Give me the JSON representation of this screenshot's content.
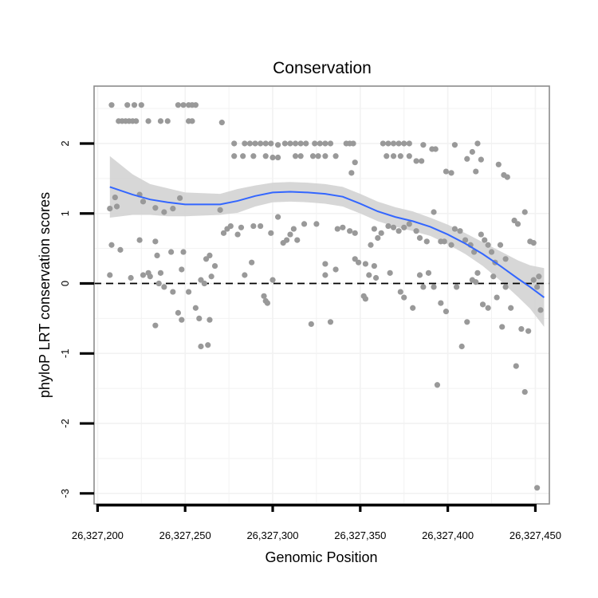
{
  "chart_data": {
    "type": "scatter",
    "title": "Conservation",
    "xlabel": "Genomic Position",
    "ylabel": "phyloP LRT conservation scores",
    "xlim": [
      26327198,
      26327458
    ],
    "ylim": [
      -3.15,
      2.82
    ],
    "x_ticks": [
      26327200,
      26327250,
      26327300,
      26327350,
      26327400,
      26327450
    ],
    "x_tick_labels": [
      "26,327,200",
      "26,327,250",
      "26,327,300",
      "26,327,350",
      "26,327,400",
      "26,327,450"
    ],
    "y_ticks": [
      -3,
      -2,
      -1,
      0,
      1,
      2
    ],
    "y_tick_labels": [
      "-3",
      "-2",
      "-1",
      "0",
      "1",
      "2"
    ],
    "reference_line": {
      "y": 0,
      "style": "dashed"
    },
    "grid": true,
    "colors": {
      "points": "#999999",
      "smooth_line": "#3366ff",
      "ribbon": "#d3d3d3",
      "panel_border": "#8c8c8c",
      "grid": "#f2f2f2",
      "reference_line": "#000000"
    },
    "smooth": {
      "x": [
        26327207,
        26327220,
        26327230,
        26327240,
        26327250,
        26327260,
        26327270,
        26327280,
        26327290,
        26327300,
        26327310,
        26327320,
        26327330,
        26327340,
        26327350,
        26327360,
        26327370,
        26327380,
        26327390,
        26327400,
        26327410,
        26327420,
        26327430,
        26327440,
        26327447,
        26327455
      ],
      "y": [
        1.38,
        1.27,
        1.2,
        1.16,
        1.13,
        1.13,
        1.13,
        1.18,
        1.25,
        1.3,
        1.31,
        1.3,
        1.28,
        1.24,
        1.14,
        1.03,
        0.95,
        0.89,
        0.81,
        0.7,
        0.57,
        0.42,
        0.25,
        0.07,
        -0.05,
        -0.2
      ],
      "lower": [
        0.94,
        0.98,
        0.98,
        0.96,
        0.96,
        0.97,
        0.98,
        1.01,
        1.1,
        1.16,
        1.17,
        1.16,
        1.14,
        1.1,
        1.0,
        0.89,
        0.81,
        0.75,
        0.68,
        0.56,
        0.42,
        0.25,
        0.04,
        -0.19,
        -0.36,
        -0.62
      ],
      "upper": [
        1.82,
        1.56,
        1.42,
        1.36,
        1.3,
        1.29,
        1.28,
        1.35,
        1.4,
        1.44,
        1.45,
        1.44,
        1.42,
        1.38,
        1.28,
        1.17,
        1.09,
        1.03,
        0.94,
        0.84,
        0.72,
        0.59,
        0.46,
        0.33,
        0.26,
        0.22
      ]
    },
    "points": [
      [
        26327208,
        2.55
      ],
      [
        26327217,
        2.55
      ],
      [
        26327221,
        2.55
      ],
      [
        26327225,
        2.55
      ],
      [
        26327246,
        2.55
      ],
      [
        26327249,
        2.55
      ],
      [
        26327252,
        2.55
      ],
      [
        26327254,
        2.55
      ],
      [
        26327256,
        2.55
      ],
      [
        26327212,
        2.32
      ],
      [
        26327214,
        2.32
      ],
      [
        26327216,
        2.32
      ],
      [
        26327218,
        2.32
      ],
      [
        26327220,
        2.32
      ],
      [
        26327222,
        2.32
      ],
      [
        26327229,
        2.32
      ],
      [
        26327236,
        2.32
      ],
      [
        26327240,
        2.32
      ],
      [
        26327252,
        2.32
      ],
      [
        26327254,
        2.32
      ],
      [
        26327271,
        2.3
      ],
      [
        26327278,
        2.0
      ],
      [
        26327284,
        2.0
      ],
      [
        26327287,
        2.0
      ],
      [
        26327290,
        2.0
      ],
      [
        26327293,
        2.0
      ],
      [
        26327296,
        2.0
      ],
      [
        26327299,
        2.0
      ],
      [
        26327303,
        1.98
      ],
      [
        26327307,
        2.0
      ],
      [
        26327310,
        2.0
      ],
      [
        26327313,
        2.0
      ],
      [
        26327316,
        2.0
      ],
      [
        26327319,
        2.0
      ],
      [
        26327324,
        2.0
      ],
      [
        26327327,
        2.0
      ],
      [
        26327330,
        2.0
      ],
      [
        26327333,
        2.0
      ],
      [
        26327342,
        2.0
      ],
      [
        26327344,
        2.0
      ],
      [
        26327346,
        2.0
      ],
      [
        26327363,
        2.0
      ],
      [
        26327366,
        2.0
      ],
      [
        26327369,
        2.0
      ],
      [
        26327372,
        2.0
      ],
      [
        26327375,
        2.0
      ],
      [
        26327378,
        2.0
      ],
      [
        26327386,
        1.98
      ],
      [
        26327404,
        1.98
      ],
      [
        26327417,
        2.0
      ],
      [
        26327429,
        1.7
      ],
      [
        26327432,
        1.55
      ],
      [
        26327434,
        1.52
      ],
      [
        26327278,
        1.82
      ],
      [
        26327283,
        1.82
      ],
      [
        26327289,
        1.82
      ],
      [
        26327296,
        1.82
      ],
      [
        26327300,
        1.8
      ],
      [
        26327303,
        1.8
      ],
      [
        26327313,
        1.82
      ],
      [
        26327316,
        1.82
      ],
      [
        26327323,
        1.82
      ],
      [
        26327326,
        1.82
      ],
      [
        26327330,
        1.82
      ],
      [
        26327336,
        1.82
      ],
      [
        26327347,
        1.73
      ],
      [
        26327345,
        1.58
      ],
      [
        26327365,
        1.82
      ],
      [
        26327369,
        1.82
      ],
      [
        26327373,
        1.82
      ],
      [
        26327378,
        1.82
      ],
      [
        26327382,
        1.75
      ],
      [
        26327385,
        1.75
      ],
      [
        26327391,
        1.92
      ],
      [
        26327393,
        1.92
      ],
      [
        26327399,
        1.6
      ],
      [
        26327402,
        1.58
      ],
      [
        26327411,
        1.78
      ],
      [
        26327414,
        1.88
      ],
      [
        26327416,
        1.6
      ],
      [
        26327419,
        1.77
      ],
      [
        26327207,
        1.07
      ],
      [
        26327210,
        1.23
      ],
      [
        26327211,
        1.1
      ],
      [
        26327224,
        1.27
      ],
      [
        26327226,
        1.17
      ],
      [
        26327233,
        1.08
      ],
      [
        26327238,
        1.02
      ],
      [
        26327243,
        1.07
      ],
      [
        26327247,
        1.22
      ],
      [
        26327270,
        1.05
      ],
      [
        26327208,
        0.55
      ],
      [
        26327213,
        0.48
      ],
      [
        26327224,
        0.62
      ],
      [
        26327229,
        0.15
      ],
      [
        26327233,
        0.6
      ],
      [
        26327234,
        0.4
      ],
      [
        26327236,
        0.15
      ],
      [
        26327242,
        0.45
      ],
      [
        26327248,
        0.2
      ],
      [
        26327249,
        0.45
      ],
      [
        26327259,
        0.05
      ],
      [
        26327262,
        0.35
      ],
      [
        26327264,
        0.4
      ],
      [
        26327265,
        0.1
      ],
      [
        26327267,
        0.25
      ],
      [
        26327272,
        0.72
      ],
      [
        26327274,
        0.78
      ],
      [
        26327276,
        0.82
      ],
      [
        26327280,
        0.7
      ],
      [
        26327282,
        0.8
      ],
      [
        26327288,
        0.3
      ],
      [
        26327289,
        0.82
      ],
      [
        26327293,
        0.82
      ],
      [
        26327299,
        0.72
      ],
      [
        26327303,
        0.95
      ],
      [
        26327306,
        0.58
      ],
      [
        26327308,
        0.62
      ],
      [
        26327310,
        0.7
      ],
      [
        26327312,
        0.78
      ],
      [
        26327314,
        0.62
      ],
      [
        26327318,
        0.85
      ],
      [
        26327325,
        0.85
      ],
      [
        26327330,
        0.28
      ],
      [
        26327337,
        0.78
      ],
      [
        26327340,
        0.8
      ],
      [
        26327344,
        0.75
      ],
      [
        26327347,
        0.72
      ],
      [
        26327353,
        0.28
      ],
      [
        26327356,
        0.55
      ],
      [
        26327358,
        0.78
      ],
      [
        26327360,
        0.65
      ],
      [
        26327362,
        0.72
      ],
      [
        26327366,
        0.82
      ],
      [
        26327369,
        0.8
      ],
      [
        26327372,
        0.75
      ],
      [
        26327375,
        0.8
      ],
      [
        26327378,
        0.85
      ],
      [
        26327382,
        0.75
      ],
      [
        26327384,
        0.65
      ],
      [
        26327388,
        0.6
      ],
      [
        26327392,
        1.02
      ],
      [
        26327396,
        0.6
      ],
      [
        26327398,
        0.6
      ],
      [
        26327402,
        0.55
      ],
      [
        26327404,
        0.78
      ],
      [
        26327407,
        0.75
      ],
      [
        26327410,
        0.62
      ],
      [
        26327413,
        0.55
      ],
      [
        26327415,
        0.45
      ],
      [
        26327417,
        0.15
      ],
      [
        26327419,
        0.7
      ],
      [
        26327421,
        0.62
      ],
      [
        26327423,
        0.55
      ],
      [
        26327425,
        0.45
      ],
      [
        26327427,
        0.3
      ],
      [
        26327430,
        0.55
      ],
      [
        26327433,
        0.35
      ],
      [
        26327438,
        0.9
      ],
      [
        26327440,
        0.85
      ],
      [
        26327444,
        1.02
      ],
      [
        26327447,
        0.6
      ],
      [
        26327449,
        0.58
      ],
      [
        26327452,
        0.1
      ],
      [
        26327207,
        0.12
      ],
      [
        26327219,
        0.08
      ],
      [
        26327226,
        0.12
      ],
      [
        26327230,
        0.1
      ],
      [
        26327235,
        0.0
      ],
      [
        26327238,
        -0.05
      ],
      [
        26327243,
        -0.12
      ],
      [
        26327246,
        -0.42
      ],
      [
        26327252,
        -0.12
      ],
      [
        26327256,
        -0.35
      ],
      [
        26327258,
        -0.5
      ],
      [
        26327259,
        -0.9
      ],
      [
        26327261,
        0.0
      ],
      [
        26327263,
        -0.88
      ],
      [
        26327264,
        -0.52
      ],
      [
        26327284,
        0.12
      ],
      [
        26327295,
        -0.18
      ],
      [
        26327297,
        -0.28
      ],
      [
        26327300,
        0.05
      ],
      [
        26327330,
        0.12
      ],
      [
        26327333,
        -0.55
      ],
      [
        26327336,
        0.2
      ],
      [
        26327347,
        0.35
      ],
      [
        26327349,
        0.3
      ],
      [
        26327352,
        -0.18
      ],
      [
        26327353,
        -0.22
      ],
      [
        26327355,
        0.12
      ],
      [
        26327358,
        0.25
      ],
      [
        26327359,
        0.08
      ],
      [
        26327367,
        0.15
      ],
      [
        26327373,
        -0.12
      ],
      [
        26327375,
        -0.2
      ],
      [
        26327380,
        -0.35
      ],
      [
        26327384,
        0.12
      ],
      [
        26327386,
        -0.05
      ],
      [
        26327389,
        0.15
      ],
      [
        26327392,
        -0.05
      ],
      [
        26327396,
        -0.28
      ],
      [
        26327399,
        -0.4
      ],
      [
        26327405,
        -0.05
      ],
      [
        26327408,
        -0.9
      ],
      [
        26327411,
        -0.55
      ],
      [
        26327414,
        0.05
      ],
      [
        26327416,
        0.02
      ],
      [
        26327420,
        -0.3
      ],
      [
        26327423,
        -0.35
      ],
      [
        26327426,
        0.1
      ],
      [
        26327428,
        -0.2
      ],
      [
        26327431,
        -0.62
      ],
      [
        26327433,
        -0.05
      ],
      [
        26327436,
        -0.35
      ],
      [
        26327439,
        -1.18
      ],
      [
        26327442,
        -0.65
      ],
      [
        26327444,
        -1.55
      ],
      [
        26327446,
        -0.68
      ],
      [
        26327449,
        0.05
      ],
      [
        26327451,
        -0.05
      ],
      [
        26327453,
        -0.38
      ],
      [
        26327233,
        -0.6
      ],
      [
        26327248,
        -0.52
      ],
      [
        26327296,
        -0.25
      ],
      [
        26327322,
        -0.58
      ],
      [
        26327394,
        -1.45
      ],
      [
        26327451,
        -2.92
      ]
    ]
  }
}
